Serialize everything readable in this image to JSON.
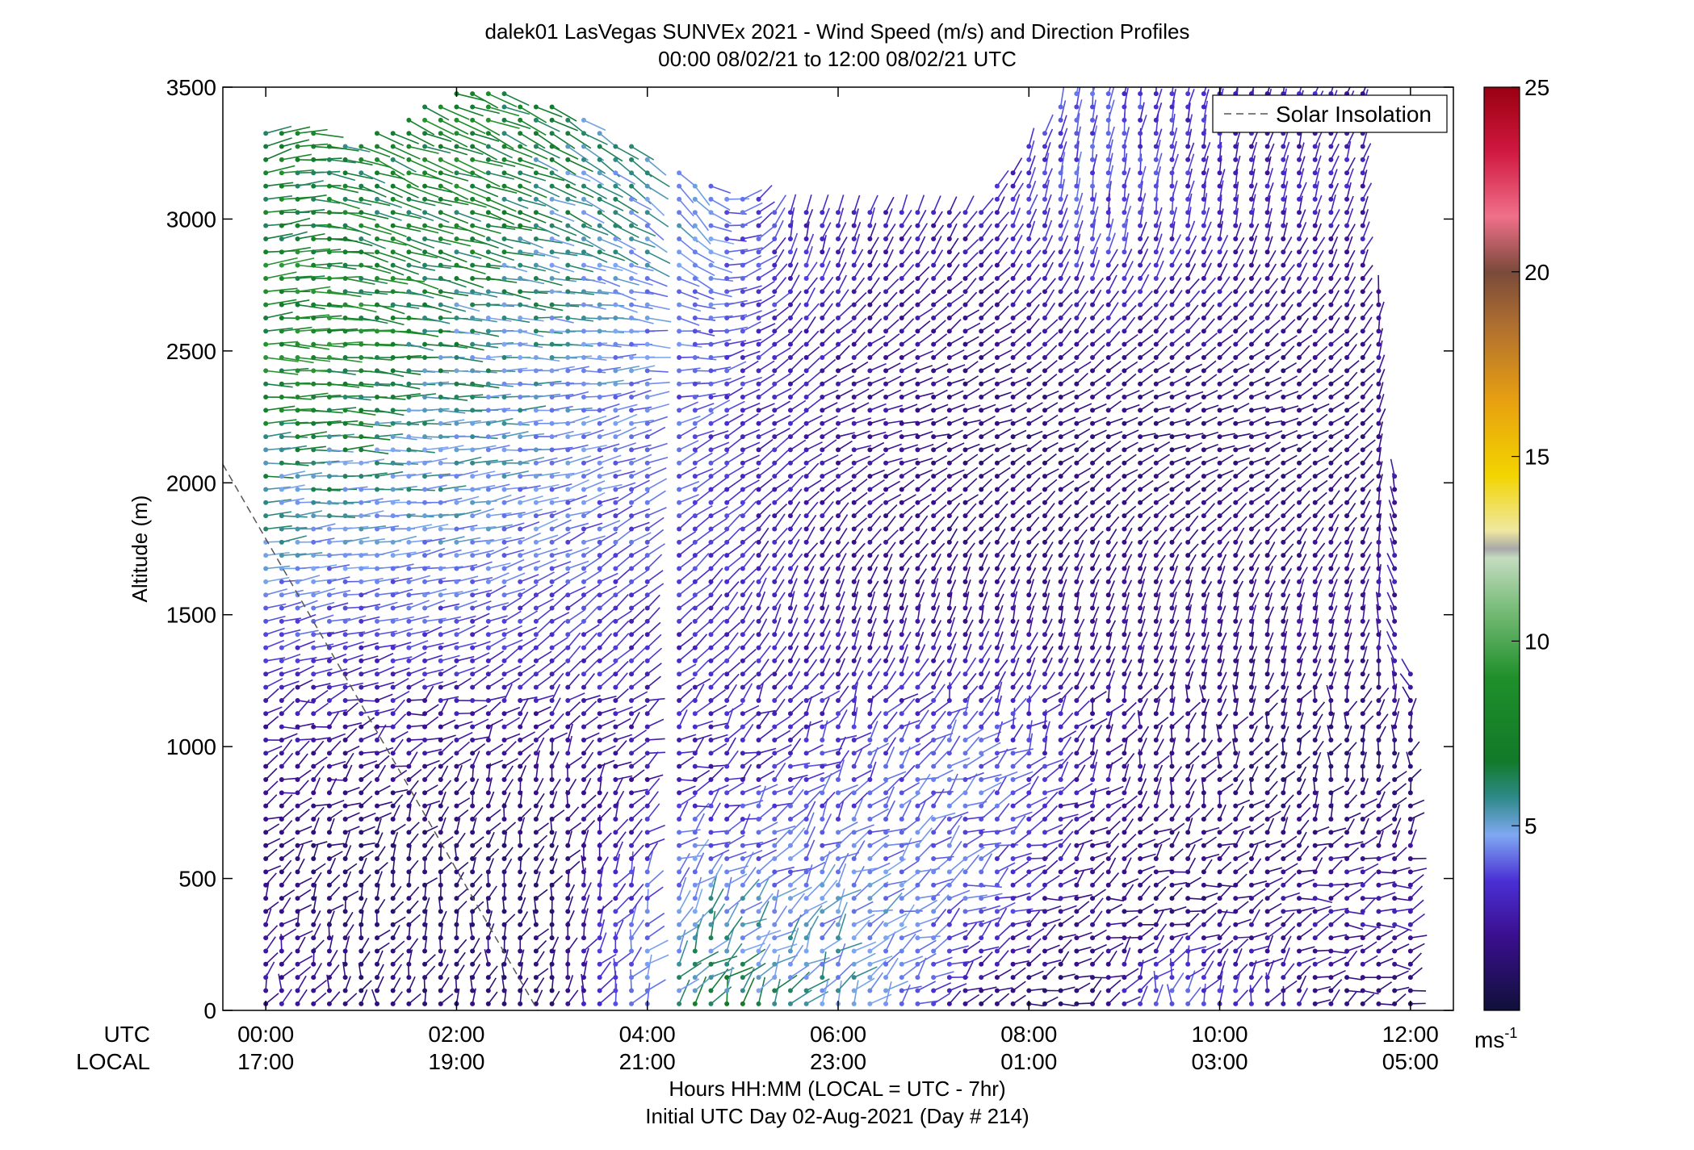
{
  "chart_data": {
    "type": "wind-barb-profile",
    "title": "dalek01 LasVegas SUNVEx 2021 - Wind Speed (m/s) and Direction Profiles",
    "subtitle": "00:00 08/02/21 to 12:00 08/02/21  UTC",
    "ylabel": "Altitude (m)",
    "xlabel": "Hours HH:MM  (LOCAL = UTC - 7hr)",
    "xlabel2": "Initial UTC Day 02-Aug-2021 (Day # 214)",
    "row_label_utc": "UTC",
    "row_label_local": "LOCAL",
    "x_ticks_utc": [
      "00:00",
      "02:00",
      "04:00",
      "06:00",
      "08:00",
      "10:00",
      "12:00"
    ],
    "x_ticks_local": [
      "17:00",
      "19:00",
      "21:00",
      "23:00",
      "01:00",
      "03:00",
      "05:00"
    ],
    "x_range_hours": [
      -0.45,
      12.45
    ],
    "ylim": [
      0,
      3500
    ],
    "y_ticks": [
      "0",
      "500",
      "1000",
      "1500",
      "2000",
      "2500",
      "3000",
      "3500"
    ],
    "y_tick_values": [
      0,
      500,
      1000,
      1500,
      2000,
      2500,
      3000,
      3500
    ],
    "legend": {
      "label": "Solar Insolation",
      "position": "top-right"
    },
    "solar_insolation_line": {
      "x": [
        -0.45,
        2.85
      ],
      "y": [
        2070,
        0
      ]
    },
    "colorbar": {
      "min": 0,
      "max": 25,
      "ticks": [
        "5",
        "10",
        "15",
        "20",
        "25"
      ],
      "tick_values": [
        5,
        10,
        15,
        20,
        25
      ],
      "unit": "ms",
      "unit_exp": "-1"
    },
    "altitude_step_m": 50,
    "profiles": [
      {
        "t": 0.0,
        "top": 3350,
        "layers": [
          {
            "z": 0,
            "speed": 2.5,
            "dir": 200
          },
          {
            "z": 600,
            "speed": 1.5,
            "dir": 230
          },
          {
            "z": 1200,
            "speed": 2.5,
            "dir": 250
          },
          {
            "z": 1800,
            "speed": 5,
            "dir": 265
          },
          {
            "z": 2500,
            "speed": 7.5,
            "dir": 270
          },
          {
            "z": 3300,
            "speed": 7,
            "dir": 250
          }
        ]
      },
      {
        "t": 1.0,
        "top": 3300,
        "layers": [
          {
            "z": 0,
            "speed": 1.5,
            "dir": 190
          },
          {
            "z": 600,
            "speed": 1.2,
            "dir": 230
          },
          {
            "z": 1200,
            "speed": 2.5,
            "dir": 250
          },
          {
            "z": 1800,
            "speed": 4.5,
            "dir": 265
          },
          {
            "z": 2500,
            "speed": 7.5,
            "dir": 275
          },
          {
            "z": 3300,
            "speed": 6.5,
            "dir": 295
          }
        ]
      },
      {
        "t": 2.0,
        "top": 3500,
        "layers": [
          {
            "z": 0,
            "speed": 1.5,
            "dir": 200
          },
          {
            "z": 600,
            "speed": 1.3,
            "dir": 200
          },
          {
            "z": 1200,
            "speed": 2.5,
            "dir": 245
          },
          {
            "z": 1800,
            "speed": 4.5,
            "dir": 260
          },
          {
            "z": 2500,
            "speed": 5.5,
            "dir": 275
          },
          {
            "z": 3300,
            "speed": 7.5,
            "dir": 290
          }
        ]
      },
      {
        "t": 3.0,
        "top": 3450,
        "layers": [
          {
            "z": 0,
            "speed": 1.5,
            "dir": 200
          },
          {
            "z": 600,
            "speed": 1.3,
            "dir": 200
          },
          {
            "z": 1200,
            "speed": 2.5,
            "dir": 220
          },
          {
            "z": 1800,
            "speed": 4,
            "dir": 250
          },
          {
            "z": 2500,
            "speed": 5,
            "dir": 270
          },
          {
            "z": 3300,
            "speed": 6,
            "dir": 300
          }
        ]
      },
      {
        "t": 4.5,
        "top": 3150,
        "layers": [
          {
            "z": 0,
            "speed": 6,
            "dir": 215
          },
          {
            "z": 400,
            "speed": 5,
            "dir": 225
          },
          {
            "z": 900,
            "speed": 2.5,
            "dir": 245
          },
          {
            "z": 1500,
            "speed": 3,
            "dir": 225
          },
          {
            "z": 2200,
            "speed": 3.5,
            "dir": 245
          },
          {
            "z": 3000,
            "speed": 4.5,
            "dir": 315
          }
        ]
      },
      {
        "t": 5.5,
        "top": 3050,
        "layers": [
          {
            "z": 0,
            "speed": 5.5,
            "dir": 215
          },
          {
            "z": 400,
            "speed": 4.5,
            "dir": 225
          },
          {
            "z": 900,
            "speed": 3,
            "dir": 230
          },
          {
            "z": 1500,
            "speed": 2.5,
            "dir": 200
          },
          {
            "z": 2200,
            "speed": 2.5,
            "dir": 240
          },
          {
            "z": 3000,
            "speed": 3,
            "dir": 190
          }
        ]
      },
      {
        "t": 6.5,
        "top": 3050,
        "layers": [
          {
            "z": 0,
            "speed": 4.5,
            "dir": 225
          },
          {
            "z": 400,
            "speed": 4.5,
            "dir": 235
          },
          {
            "z": 900,
            "speed": 3.5,
            "dir": 230
          },
          {
            "z": 1500,
            "speed": 2,
            "dir": 195
          },
          {
            "z": 2200,
            "speed": 2,
            "dir": 260
          },
          {
            "z": 3000,
            "speed": 2.5,
            "dir": 200
          }
        ]
      },
      {
        "t": 7.5,
        "top": 3050,
        "layers": [
          {
            "z": 0,
            "speed": 1.5,
            "dir": 240
          },
          {
            "z": 400,
            "speed": 3.5,
            "dir": 245
          },
          {
            "z": 900,
            "speed": 4,
            "dir": 235
          },
          {
            "z": 1500,
            "speed": 2,
            "dir": 195
          },
          {
            "z": 2200,
            "speed": 1.5,
            "dir": 250
          },
          {
            "z": 3000,
            "speed": 2.5,
            "dir": 215
          }
        ]
      },
      {
        "t": 8.5,
        "top": 3500,
        "layers": [
          {
            "z": 0,
            "speed": 1.3,
            "dir": 250
          },
          {
            "z": 400,
            "speed": 2,
            "dir": 245
          },
          {
            "z": 900,
            "speed": 2.5,
            "dir": 220
          },
          {
            "z": 1500,
            "speed": 2,
            "dir": 195
          },
          {
            "z": 2200,
            "speed": 1.5,
            "dir": 245
          },
          {
            "z": 3000,
            "speed": 3.5,
            "dir": 190
          }
        ]
      },
      {
        "t": 9.5,
        "top": 3500,
        "layers": [
          {
            "z": 0,
            "speed": 4,
            "dir": 190
          },
          {
            "z": 400,
            "speed": 1.5,
            "dir": 250
          },
          {
            "z": 900,
            "speed": 1.8,
            "dir": 200
          },
          {
            "z": 1500,
            "speed": 2,
            "dir": 195
          },
          {
            "z": 2200,
            "speed": 1.5,
            "dir": 255
          },
          {
            "z": 3000,
            "speed": 3,
            "dir": 190
          }
        ]
      },
      {
        "t": 10.5,
        "top": 3500,
        "layers": [
          {
            "z": 0,
            "speed": 2.5,
            "dir": 200
          },
          {
            "z": 400,
            "speed": 2,
            "dir": 255
          },
          {
            "z": 900,
            "speed": 1.3,
            "dir": 200
          },
          {
            "z": 1500,
            "speed": 2,
            "dir": 195
          },
          {
            "z": 2200,
            "speed": 1.5,
            "dir": 255
          },
          {
            "z": 3000,
            "speed": 2.5,
            "dir": 195
          }
        ]
      },
      {
        "t": 11.5,
        "top": 3500,
        "layers": [
          {
            "z": 0,
            "speed": 1.5,
            "dir": 250
          },
          {
            "z": 400,
            "speed": 2.5,
            "dir": 255
          },
          {
            "z": 900,
            "speed": 1.3,
            "dir": 200
          },
          {
            "z": 1500,
            "speed": 2,
            "dir": 195
          },
          {
            "z": 2200,
            "speed": 1.5,
            "dir": 230
          },
          {
            "z": 3000,
            "speed": 2.5,
            "dir": 200
          }
        ]
      },
      {
        "t": 12.0,
        "top": 1300,
        "layers": [
          {
            "z": 0,
            "speed": 1.3,
            "dir": 250
          },
          {
            "z": 400,
            "speed": 2.5,
            "dir": 260
          },
          {
            "z": 900,
            "speed": 1.2,
            "dir": 200
          },
          {
            "z": 1300,
            "speed": 2.5,
            "dir": 140
          }
        ]
      }
    ],
    "data_gap_hours": [
      4.0,
      4.3
    ]
  }
}
